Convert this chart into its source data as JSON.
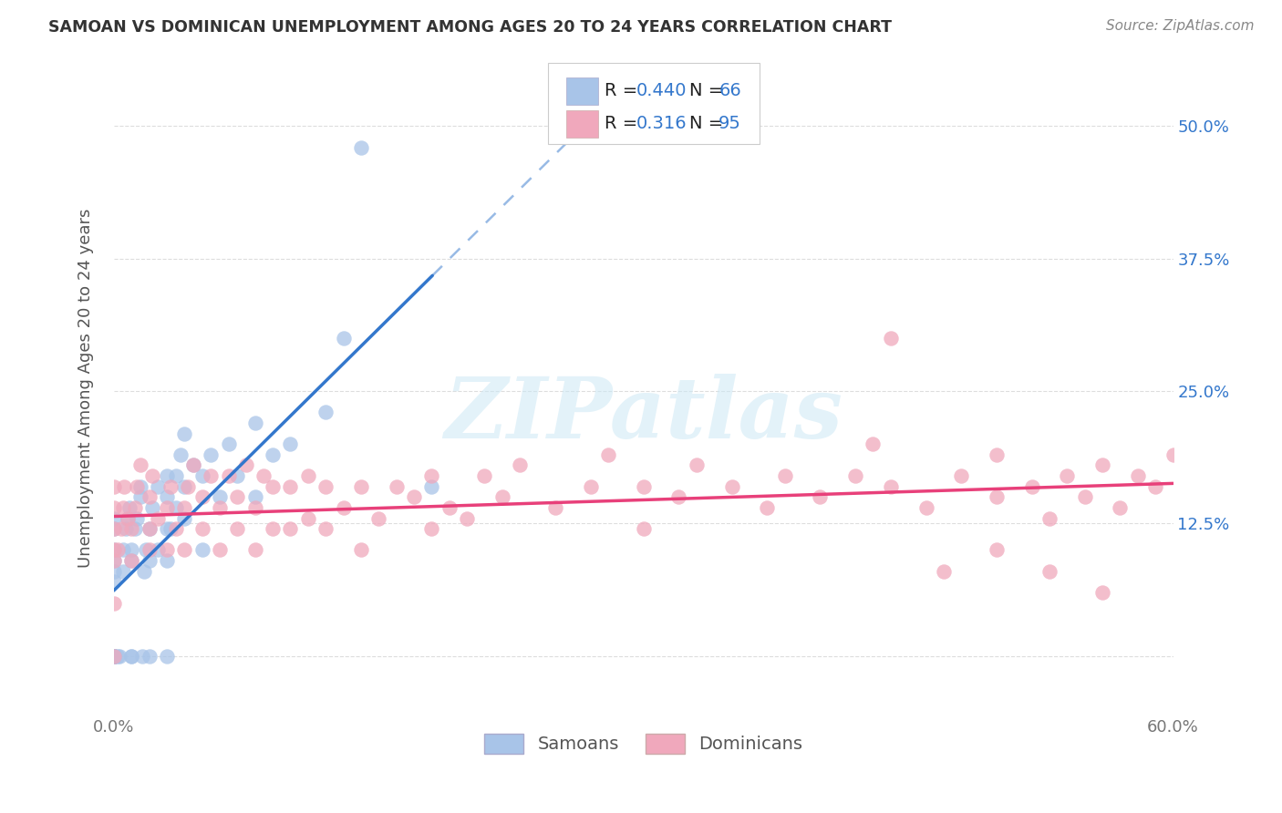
{
  "title": "SAMOAN VS DOMINICAN UNEMPLOYMENT AMONG AGES 20 TO 24 YEARS CORRELATION CHART",
  "source": "Source: ZipAtlas.com",
  "ylabel": "Unemployment Among Ages 20 to 24 years",
  "xlim": [
    0.0,
    0.6
  ],
  "ylim": [
    -0.055,
    0.56
  ],
  "ytick_vals": [
    0.0,
    0.125,
    0.25,
    0.375,
    0.5
  ],
  "ytick_labels": [
    "",
    "12.5%",
    "25.0%",
    "37.5%",
    "50.0%"
  ],
  "bg_color": "#ffffff",
  "watermark_text": "ZIPatlas",
  "watermark_color": "#cce8f5",
  "samoans_dot_color": "#a8c4e8",
  "dominicans_dot_color": "#f0a8bc",
  "samoans_line_color": "#3377cc",
  "dominicans_line_color": "#e8407a",
  "samoans_R": 0.44,
  "samoans_N": 66,
  "dominicans_R": 0.316,
  "dominicans_N": 95,
  "legend_text_color": "#3377cc",
  "grid_color": "#dddddd",
  "title_color": "#333333",
  "axis_label_color": "#555555",
  "tick_color": "#777777",
  "samoans_x": [
    0.0,
    0.0,
    0.0,
    0.0,
    0.0,
    0.0,
    0.0,
    0.0,
    0.0,
    0.0,
    0.0,
    0.0,
    0.0,
    0.0,
    0.0,
    0.002,
    0.003,
    0.005,
    0.005,
    0.007,
    0.008,
    0.009,
    0.01,
    0.01,
    0.01,
    0.01,
    0.012,
    0.013,
    0.015,
    0.015,
    0.016,
    0.017,
    0.018,
    0.02,
    0.02,
    0.02,
    0.022,
    0.025,
    0.025,
    0.03,
    0.03,
    0.03,
    0.03,
    0.03,
    0.032,
    0.035,
    0.035,
    0.038,
    0.04,
    0.04,
    0.04,
    0.045,
    0.05,
    0.05,
    0.055,
    0.06,
    0.065,
    0.07,
    0.08,
    0.08,
    0.09,
    0.1,
    0.12,
    0.13,
    0.14,
    0.18
  ],
  "samoans_y": [
    0.0,
    0.0,
    0.0,
    0.0,
    0.0,
    0.0,
    0.0,
    0.0,
    0.0,
    0.07,
    0.08,
    0.09,
    0.1,
    0.12,
    0.13,
    0.0,
    0.0,
    0.08,
    0.1,
    0.12,
    0.13,
    0.14,
    0.0,
    0.0,
    0.09,
    0.1,
    0.12,
    0.13,
    0.15,
    0.16,
    0.0,
    0.08,
    0.1,
    0.0,
    0.09,
    0.12,
    0.14,
    0.1,
    0.16,
    0.0,
    0.09,
    0.12,
    0.15,
    0.17,
    0.12,
    0.14,
    0.17,
    0.19,
    0.13,
    0.16,
    0.21,
    0.18,
    0.1,
    0.17,
    0.19,
    0.15,
    0.2,
    0.17,
    0.15,
    0.22,
    0.19,
    0.2,
    0.23,
    0.3,
    0.48,
    0.16
  ],
  "dominicans_x": [
    0.0,
    0.0,
    0.0,
    0.0,
    0.0,
    0.0,
    0.0,
    0.002,
    0.004,
    0.005,
    0.006,
    0.008,
    0.01,
    0.01,
    0.012,
    0.013,
    0.015,
    0.02,
    0.02,
    0.02,
    0.022,
    0.025,
    0.03,
    0.03,
    0.032,
    0.035,
    0.04,
    0.04,
    0.042,
    0.045,
    0.05,
    0.05,
    0.055,
    0.06,
    0.06,
    0.065,
    0.07,
    0.07,
    0.075,
    0.08,
    0.08,
    0.085,
    0.09,
    0.09,
    0.1,
    0.1,
    0.11,
    0.11,
    0.12,
    0.12,
    0.13,
    0.14,
    0.14,
    0.15,
    0.16,
    0.17,
    0.18,
    0.18,
    0.19,
    0.2,
    0.21,
    0.22,
    0.23,
    0.25,
    0.27,
    0.28,
    0.3,
    0.3,
    0.32,
    0.33,
    0.35,
    0.37,
    0.38,
    0.4,
    0.42,
    0.43,
    0.44,
    0.46,
    0.48,
    0.5,
    0.5,
    0.52,
    0.53,
    0.54,
    0.55,
    0.56,
    0.57,
    0.58,
    0.59,
    0.6,
    0.44,
    0.47,
    0.5,
    0.53,
    0.56
  ],
  "dominicans_y": [
    0.0,
    0.05,
    0.09,
    0.1,
    0.12,
    0.14,
    0.16,
    0.1,
    0.12,
    0.14,
    0.16,
    0.13,
    0.09,
    0.12,
    0.14,
    0.16,
    0.18,
    0.1,
    0.12,
    0.15,
    0.17,
    0.13,
    0.1,
    0.14,
    0.16,
    0.12,
    0.1,
    0.14,
    0.16,
    0.18,
    0.12,
    0.15,
    0.17,
    0.1,
    0.14,
    0.17,
    0.12,
    0.15,
    0.18,
    0.1,
    0.14,
    0.17,
    0.12,
    0.16,
    0.12,
    0.16,
    0.13,
    0.17,
    0.12,
    0.16,
    0.14,
    0.1,
    0.16,
    0.13,
    0.16,
    0.15,
    0.12,
    0.17,
    0.14,
    0.13,
    0.17,
    0.15,
    0.18,
    0.14,
    0.16,
    0.19,
    0.12,
    0.16,
    0.15,
    0.18,
    0.16,
    0.14,
    0.17,
    0.15,
    0.17,
    0.2,
    0.16,
    0.14,
    0.17,
    0.15,
    0.19,
    0.16,
    0.13,
    0.17,
    0.15,
    0.18,
    0.14,
    0.17,
    0.16,
    0.19,
    0.3,
    0.08,
    0.1,
    0.08,
    0.06
  ]
}
